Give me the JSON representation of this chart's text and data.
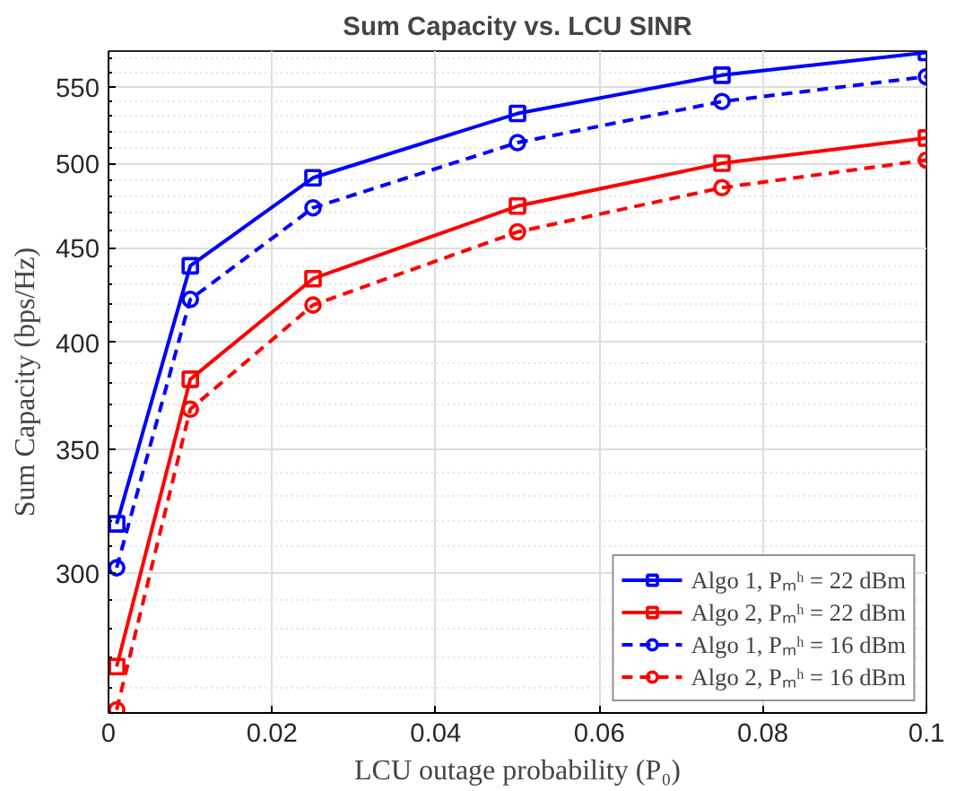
{
  "chart_data": {
    "type": "line",
    "title": "Sum Capacity vs. LCU SINR",
    "xlabel": "LCU outage probability (P₀)",
    "ylabel": "Sum Capacity (bps/Hz)",
    "x": [
      0.001,
      0.01,
      0.025,
      0.05,
      0.075,
      0.1
    ],
    "series": [
      {
        "name": "Algo 1, Pₘʰ = 22 dBm",
        "color": "#0000ff",
        "marker": "square",
        "line_style": "solid",
        "values": [
          319,
          440,
          491,
          532,
          558,
          574
        ]
      },
      {
        "name": "Algo 2, Pₘʰ = 22 dBm",
        "color": "#ff0000",
        "marker": "square",
        "line_style": "solid",
        "values": [
          267,
          382,
          433,
          474,
          500,
          516
        ]
      },
      {
        "name": "Algo 1, Pₘʰ = 16 dBm",
        "color": "#0000ff",
        "marker": "circle",
        "line_style": "dashed",
        "values": [
          302,
          422,
          473,
          513,
          540,
          557
        ]
      },
      {
        "name": "Algo 2, Pₘʰ = 16 dBm",
        "color": "#ff0000",
        "marker": "circle",
        "line_style": "dashed",
        "values": [
          253,
          368,
          419,
          459,
          485,
          502
        ]
      }
    ],
    "log": "y",
    "xlim": [
      0,
      0.1
    ],
    "ylim": [
      252,
      575
    ],
    "xticks": [
      {
        "value": 0,
        "label": "0"
      },
      0.02,
      0.04,
      0.06,
      0.08,
      0.1
    ],
    "yticks": [
      300,
      350,
      400,
      450,
      500,
      550
    ],
    "grid": true,
    "legend": "bottom right"
  }
}
